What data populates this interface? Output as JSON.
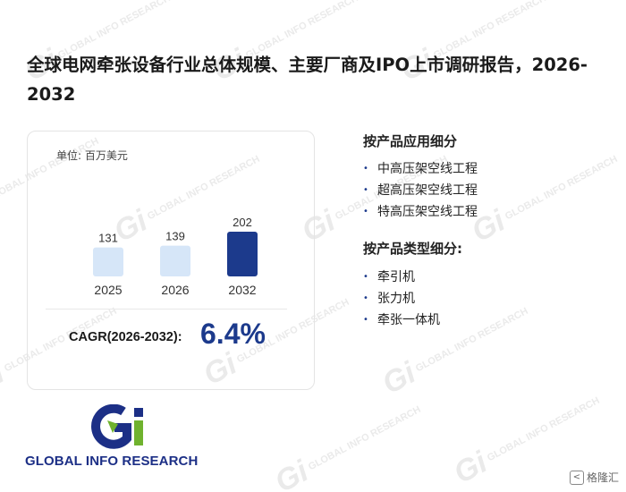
{
  "header": {
    "title": "全球电网牵张设备行业总体规模、主要厂商及IPO上市调研报告，2026-2032"
  },
  "market_card": {
    "unit_label": "单位: 百万美元",
    "cagr_label": "CAGR(2026-2032):",
    "cagr_value": "6.4%"
  },
  "chart_data": {
    "type": "bar",
    "categories": [
      "2025",
      "2026",
      "2032"
    ],
    "values": [
      131,
      139,
      202
    ],
    "value_labels": [
      "131",
      "139",
      "202"
    ],
    "colors": [
      "#d6e6f8",
      "#d6e6f8",
      "#1c3a8c"
    ],
    "title": "",
    "xlabel": "",
    "ylabel": "",
    "grid": false
  },
  "segments": {
    "by_application": {
      "heading": "按产品应用细分",
      "items": [
        "中高压架空线工程",
        "超高压架空线工程",
        "特高压架空线工程"
      ]
    },
    "by_type": {
      "heading": "按产品类型细分:",
      "items": [
        "牵引机",
        "张力机",
        "牵张一体机"
      ]
    },
    "bullet_glyph": "•"
  },
  "logo": {
    "text": "GLOBAL INFO RESEARCH",
    "colors": {
      "blue": "#1c2f86",
      "green": "#6fb22e"
    }
  },
  "watermark": {
    "text": "GLOBAL INFO RESEARCH",
    "mark": "Gi"
  },
  "corner_badge": {
    "icon": "<",
    "text": "格隆汇"
  }
}
